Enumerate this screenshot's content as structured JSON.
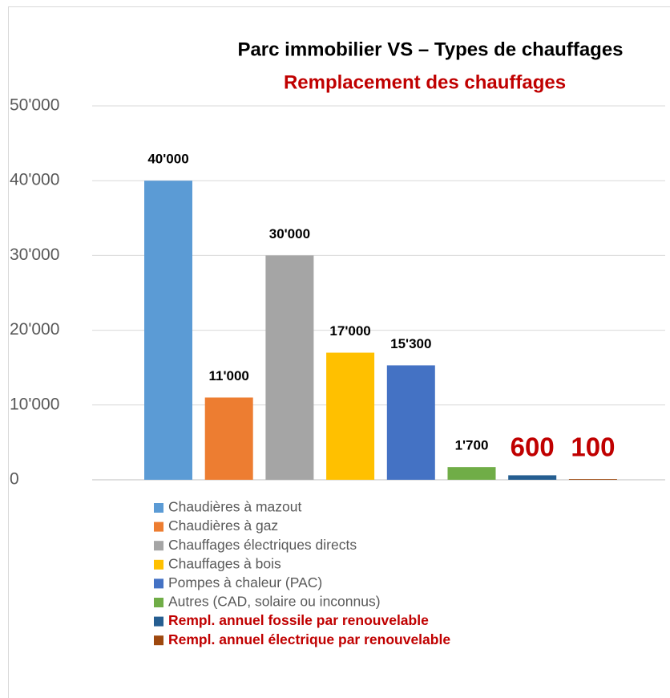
{
  "chart_data": {
    "type": "bar",
    "title": "Parc immobilier VS – Types  de chauffages",
    "subtitle": "Remplacement des chauffages",
    "ylim": [
      0,
      50000
    ],
    "yticks": [
      0,
      {
        "value": 10000,
        "label": "10'000"
      },
      {
        "value": 20000,
        "label": "20'000"
      },
      {
        "value": 30000,
        "label": "30'000"
      },
      {
        "value": 40000,
        "label": "40'000"
      },
      {
        "value": 50000,
        "label": "50'000"
      }
    ],
    "grid": true,
    "legend": "bottom",
    "series": [
      {
        "name": "Chaudières à mazout",
        "color": "#5b9bd5",
        "values": [
          40000
        ],
        "value_labels": [
          "40'000"
        ]
      },
      {
        "name": "Chaudières à gaz",
        "color": "#ed7d31",
        "values": [
          11000
        ],
        "value_labels": [
          "11'000"
        ]
      },
      {
        "name": "Chauffages électriques directs",
        "color": "#a5a5a5",
        "values": [
          30000
        ],
        "value_labels": [
          "30'000"
        ]
      },
      {
        "name": "Chauffages à bois",
        "color": "#ffc000",
        "values": [
          17000
        ],
        "value_labels": [
          "17'000"
        ]
      },
      {
        "name": "Pompes à chaleur (PAC)",
        "color": "#4472c4",
        "values": [
          15300
        ],
        "value_labels": [
          "15'300"
        ]
      },
      {
        "name": "Autres (CAD, solaire ou inconnus)",
        "color": "#70ad47",
        "values": [
          1700
        ],
        "value_labels": [
          "1'700"
        ]
      },
      {
        "name": "Rempl. annuel fossile par renouvelable",
        "color": "#255e91",
        "values": [
          600
        ],
        "label_color": "#c00000"
      },
      {
        "name": "Rempl. annuel électrique par renouvelable",
        "color": "#9e480e",
        "values": [
          100
        ],
        "label_color": "#c00000"
      }
    ]
  }
}
